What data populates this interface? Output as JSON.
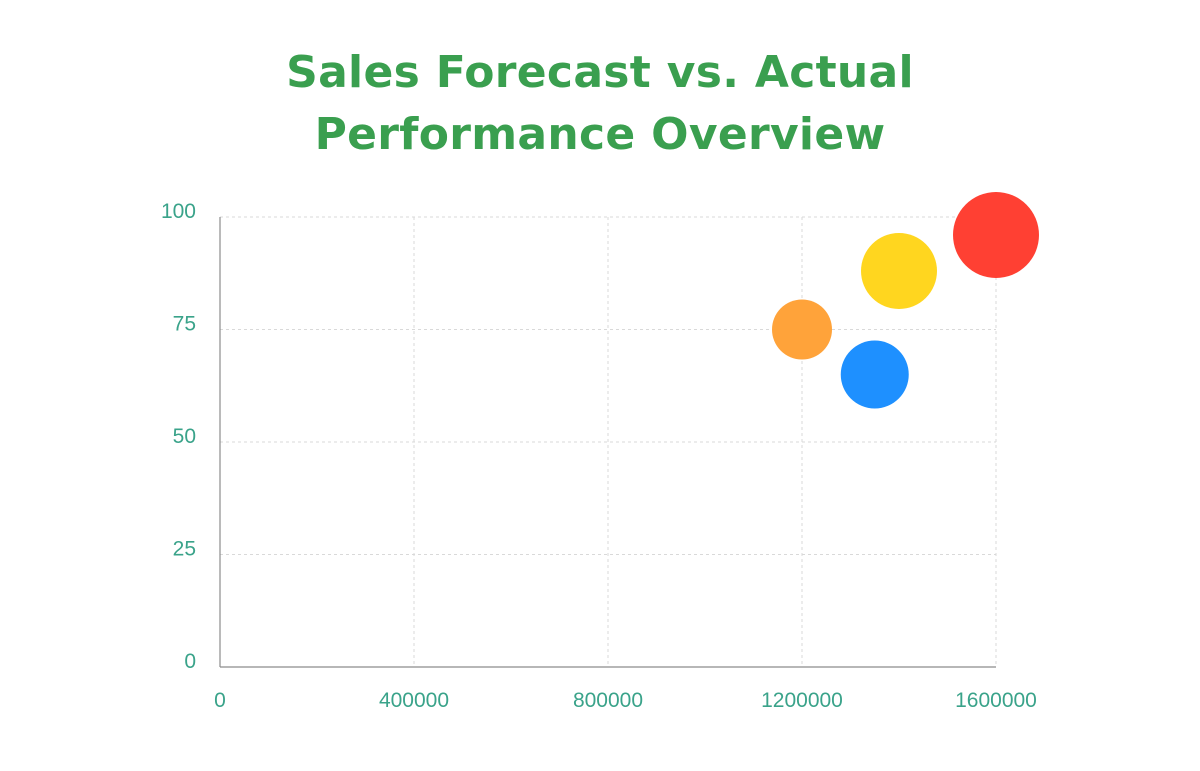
{
  "chart_data": {
    "type": "scatter",
    "title_lines": [
      "Sales Forecast vs. Actual",
      "Performance Overview"
    ],
    "xlabel": "",
    "ylabel": "",
    "xlim": [
      0,
      1600000
    ],
    "ylim": [
      0,
      100
    ],
    "x_ticks": [
      "0",
      "400000",
      "800000",
      "1200000",
      "1600000"
    ],
    "y_ticks": [
      "0",
      "25",
      "50",
      "75",
      "100"
    ],
    "x_tick_values": [
      0,
      400000,
      800000,
      1200000,
      1600000
    ],
    "y_tick_values": [
      0,
      25,
      50,
      75,
      100
    ],
    "grid": true,
    "legend": "none",
    "points": [
      {
        "x": 1200000,
        "y": 75,
        "size": 30,
        "color": "#ffa33a"
      },
      {
        "x": 1350000,
        "y": 65,
        "size": 34,
        "color": "#1e90ff"
      },
      {
        "x": 1400000,
        "y": 88,
        "size": 38,
        "color": "#ffd61f"
      },
      {
        "x": 1600000,
        "y": 96,
        "size": 43,
        "color": "#ff4033"
      }
    ]
  },
  "colors": {
    "title": "#3a9f4f",
    "tick_label": "#3aa38a"
  }
}
